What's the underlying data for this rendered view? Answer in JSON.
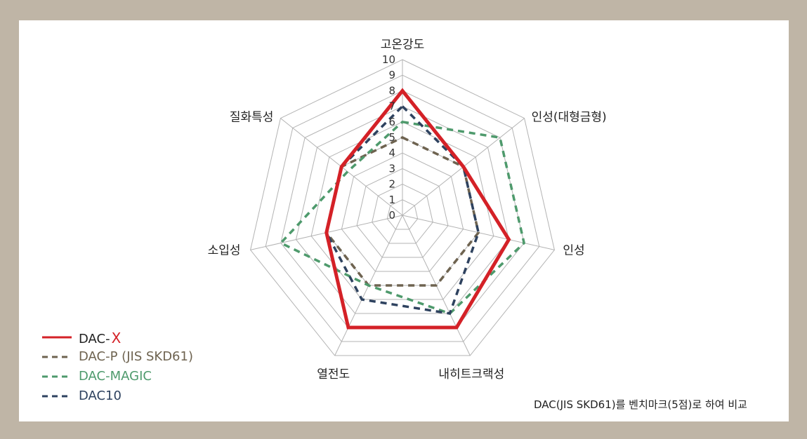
{
  "chart_data": {
    "type": "radar",
    "axes": [
      "고온강도",
      "인성(대형금형)",
      "인성",
      "내히트크랙성",
      "열전도",
      "소입성",
      "질화특성"
    ],
    "rlim": [
      0,
      10
    ],
    "ticks": [
      "0",
      "1",
      "2",
      "3",
      "4",
      "5",
      "6",
      "7",
      "8",
      "9",
      "10"
    ],
    "series": [
      {
        "name": "DAC-",
        "name_mark": "X",
        "color": "#d42127",
        "dash": "solid",
        "values": [
          8,
          5,
          7,
          8,
          8,
          5,
          5
        ]
      },
      {
        "name": "DAC-P (JIS SKD61)",
        "color": "#6e6350",
        "dash": "dashed",
        "values": [
          5,
          5,
          5,
          5,
          5,
          5,
          5
        ]
      },
      {
        "name": "DAC-MAGIC",
        "color": "#4e9a6c",
        "dash": "dashed",
        "values": [
          6,
          8,
          8,
          7,
          5,
          8,
          4.5
        ]
      },
      {
        "name": "DAC10",
        "color": "#2e425f",
        "dash": "dashed",
        "values": [
          7,
          5,
          5,
          7,
          6,
          5,
          5
        ]
      }
    ],
    "grid": true,
    "legend_position": "bottom-left"
  },
  "footnote": "DAC(JIS SKD61)를 벤치마크(5점)로 하여 비교"
}
